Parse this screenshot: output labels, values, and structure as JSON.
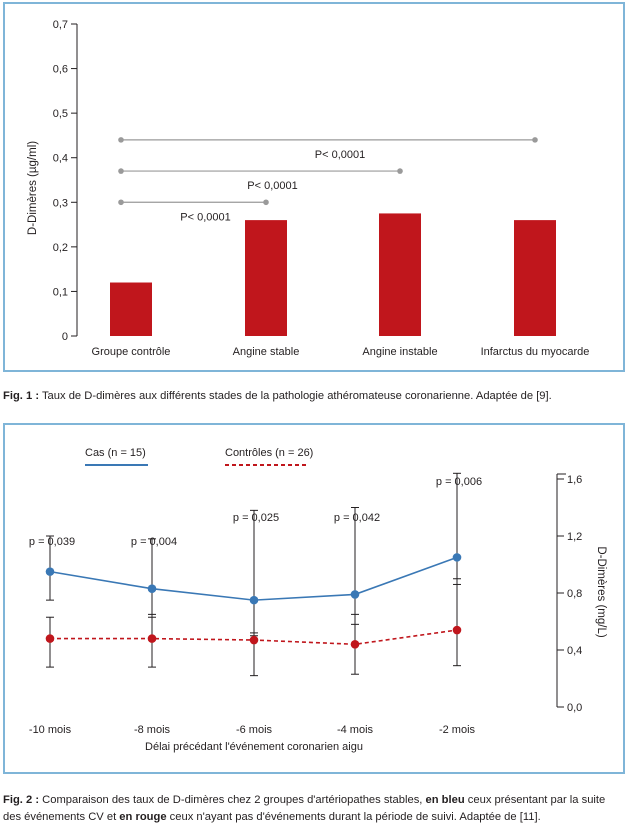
{
  "chart_data": [
    {
      "type": "bar",
      "ylabel": "D-Dimères (µg/ml)",
      "ylim": [
        0,
        0.7
      ],
      "yticks": [
        {
          "value": 0,
          "label": "0"
        },
        {
          "value": 0.1,
          "label": "0,1"
        },
        {
          "value": 0.2,
          "label": "0,2"
        },
        {
          "value": 0.3,
          "label": "0,3"
        },
        {
          "value": 0.4,
          "label": "0,4"
        },
        {
          "value": 0.5,
          "label": "0,5"
        },
        {
          "value": 0.6,
          "label": "0,6"
        },
        {
          "value": 0.7,
          "label": "0,7"
        }
      ],
      "categories": [
        "Groupe contrôle",
        "Angine stable",
        "Angine instable",
        "Infarctus du myocarde"
      ],
      "values": [
        0.12,
        0.26,
        0.275,
        0.26
      ],
      "bar_color": "#c0161c",
      "grid": false,
      "comparisons": [
        {
          "from": 0,
          "to": 1,
          "y": 0.3,
          "label": "P< 0,0001"
        },
        {
          "from": 0,
          "to": 2,
          "y": 0.37,
          "label": "P< 0,0001"
        },
        {
          "from": 0,
          "to": 3,
          "y": 0.44,
          "label": "P< 0,0001"
        }
      ],
      "comparison_color": "#9a9a9a"
    },
    {
      "type": "line",
      "xlabel": "Délai précédant l'événement coronarien aigu",
      "ylabel": "D-Dimères (mg/L)",
      "y_axis_side": "right",
      "ylim": [
        0,
        1.6
      ],
      "yticks": [
        {
          "value": 0,
          "label": "0,0"
        },
        {
          "value": 0.4,
          "label": "0,4"
        },
        {
          "value": 0.8,
          "label": "0,8"
        },
        {
          "value": 1.2,
          "label": "1,2"
        },
        {
          "value": 1.6,
          "label": "1,6"
        }
      ],
      "x": [
        "-10 mois",
        "-8 mois",
        "-6 mois",
        "-4 mois",
        "-2 mois"
      ],
      "series": [
        {
          "name": "Cas (n = 15)",
          "color": "#3a78b5",
          "dash": false,
          "values": [
            0.95,
            0.83,
            0.75,
            0.79,
            1.05
          ],
          "err_low": [
            0.75,
            0.63,
            0.5,
            0.58,
            0.86
          ],
          "err_high": [
            1.2,
            1.18,
            1.38,
            1.4,
            1.64
          ]
        },
        {
          "name": "Contrôles (n = 26)",
          "color": "#c0161c",
          "dash": true,
          "values": [
            0.48,
            0.48,
            0.47,
            0.44,
            0.54
          ],
          "err_low": [
            0.28,
            0.28,
            0.22,
            0.23,
            0.29
          ],
          "err_high": [
            0.63,
            0.65,
            0.52,
            0.65,
            0.9
          ]
        }
      ],
      "pvalues": [
        "p = 0,039",
        "p = 0,004",
        "p = 0,025",
        "p = 0,042",
        "p = 0,006"
      ],
      "legend_position": "top-left",
      "grid": false
    }
  ],
  "captions": {
    "fig1": {
      "label": "Fig. 1 :",
      "text": " Taux de D-dimères aux différents stades de la pathologie athéromateuse coronarienne. Adaptée de [9]."
    },
    "fig2": {
      "label": "Fig. 2 :",
      "text1": " Comparaison des taux de D-dimères chez 2 groupes d'artériopathes stables, ",
      "bold_blue": "en bleu",
      "text2": " ceux présentant par la suite des événements CV et ",
      "bold_red": "en rouge",
      "text3": " ceux n'ayant pas d'événements durant la période de suivi. Adaptée de [11]."
    }
  }
}
